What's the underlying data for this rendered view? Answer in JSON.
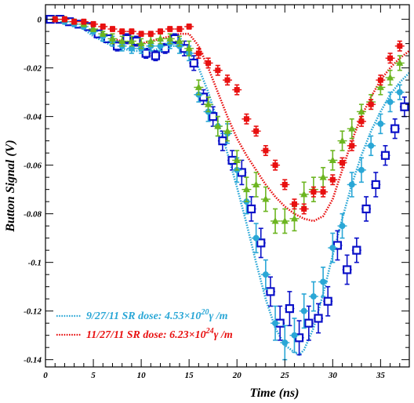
{
  "chart_data": {
    "type": "scatter",
    "xlabel": "Time (ns)",
    "ylabel": "Button Signal (V)",
    "xlim": [
      0,
      38
    ],
    "ylim": [
      -0.143,
      0.006
    ],
    "grid": false,
    "x_ticks": [
      0,
      5,
      10,
      15,
      20,
      25,
      30,
      35
    ],
    "y_ticks": [
      0,
      -0.02,
      -0.04,
      -0.06,
      -0.08,
      -0.1,
      -0.12,
      -0.14
    ],
    "x_tick_labels": [
      "0",
      "5",
      "10",
      "15",
      "20",
      "25",
      "30",
      "35"
    ],
    "y_tick_labels": [
      "0",
      "-0.02",
      "-0.04",
      "-0.06",
      "-0.08",
      "-0.1",
      "-0.12",
      "-0.14"
    ],
    "legend": {
      "placement": "bottom-left",
      "entries": [
        {
          "label": "9/27/11 SR dose: 4.53×10",
          "exp": "20",
          "suffix": "γ /m",
          "color": "#2aa7d6"
        },
        {
          "label": "11/27/11 SR dose: 6.23×10",
          "exp": "24",
          "suffix": "γ /m",
          "color": "#e81010"
        }
      ]
    },
    "series": [
      {
        "name": "9/27/11 SR dose: 4.53×10^20 γ/m",
        "kind": "dotted-line",
        "color": "#2aa7d6",
        "x": [
          0,
          1,
          2,
          3,
          4,
          5,
          6,
          7,
          8,
          9,
          10,
          11,
          12,
          13,
          14,
          15,
          16,
          17,
          18,
          19,
          20,
          21,
          22,
          23,
          24,
          25,
          26,
          26.5,
          27,
          28,
          29,
          30,
          31,
          32,
          33,
          34,
          35,
          36,
          37,
          38
        ],
        "y": [
          0.0,
          0.0,
          -0.001,
          -0.002,
          -0.004,
          -0.007,
          -0.009,
          -0.011,
          -0.012,
          -0.013,
          -0.013,
          -0.013,
          -0.012,
          -0.011,
          -0.011,
          -0.013,
          -0.02,
          -0.03,
          -0.042,
          -0.055,
          -0.069,
          -0.084,
          -0.1,
          -0.115,
          -0.127,
          -0.134,
          -0.137,
          -0.138,
          -0.136,
          -0.127,
          -0.113,
          -0.097,
          -0.082,
          -0.068,
          -0.056,
          -0.046,
          -0.038,
          -0.031,
          -0.026,
          -0.022
        ]
      },
      {
        "name": "11/27/11 SR dose: 6.23×10^24 γ/m",
        "kind": "dotted-line",
        "color": "#e81010",
        "x": [
          0,
          1,
          2,
          3,
          4,
          5,
          6,
          7,
          8,
          9,
          10,
          11,
          12,
          13,
          14,
          15,
          16,
          17,
          18,
          19,
          20,
          21,
          22,
          23,
          24,
          25,
          26,
          27,
          28,
          29,
          30,
          31,
          32,
          33,
          34,
          35,
          36,
          37,
          38
        ],
        "y": [
          0.0,
          0.0,
          0.0,
          -0.001,
          -0.002,
          -0.004,
          -0.006,
          -0.008,
          -0.009,
          -0.01,
          -0.01,
          -0.009,
          -0.008,
          -0.007,
          -0.006,
          -0.006,
          -0.011,
          -0.02,
          -0.03,
          -0.04,
          -0.049,
          -0.056,
          -0.062,
          -0.068,
          -0.073,
          -0.077,
          -0.08,
          -0.082,
          -0.083,
          -0.081,
          -0.074,
          -0.062,
          -0.05,
          -0.04,
          -0.032,
          -0.025,
          -0.02,
          -0.016,
          -0.013
        ]
      },
      {
        "name": "blue open squares",
        "kind": "markers",
        "marker": "open-square",
        "color": "#0a10c8",
        "x": [
          0.5,
          1.5,
          2.5,
          3.5,
          4.5,
          5.5,
          6.5,
          7.5,
          8.5,
          9.5,
          10.5,
          11.5,
          12.5,
          13.5,
          14.5,
          15.5,
          16.5,
          17.5,
          18.5,
          19.5,
          20.5,
          21.5,
          22.5,
          23.5,
          24.5,
          25.5,
          26.5,
          27.5,
          28.5,
          29.5,
          30.5,
          31.5,
          32.5,
          33.5,
          34.5,
          35.5,
          36.5,
          37.5
        ],
        "y": [
          0.0,
          0.0,
          -0.001,
          -0.002,
          -0.003,
          -0.006,
          -0.008,
          -0.011,
          -0.008,
          -0.009,
          -0.014,
          -0.015,
          -0.012,
          -0.008,
          -0.012,
          -0.018,
          -0.032,
          -0.04,
          -0.05,
          -0.058,
          -0.063,
          -0.078,
          -0.092,
          -0.112,
          -0.125,
          -0.119,
          -0.131,
          -0.125,
          -0.123,
          -0.116,
          -0.093,
          -0.103,
          -0.095,
          -0.078,
          -0.068,
          -0.056,
          -0.045,
          -0.036
        ],
        "err": [
          0.001,
          0.001,
          0.001,
          0.001,
          0.001,
          0.001,
          0.001,
          0.002,
          0.002,
          0.002,
          0.002,
          0.002,
          0.002,
          0.002,
          0.003,
          0.003,
          0.003,
          0.004,
          0.004,
          0.004,
          0.005,
          0.005,
          0.006,
          0.006,
          0.007,
          0.007,
          0.007,
          0.007,
          0.006,
          0.006,
          0.006,
          0.006,
          0.005,
          0.005,
          0.005,
          0.004,
          0.004,
          0.004
        ]
      },
      {
        "name": "cyan filled circles",
        "kind": "markers",
        "marker": "filled-circle",
        "color": "#2aa7d6",
        "x": [
          1,
          2,
          3,
          4,
          5,
          6,
          7,
          8,
          9,
          10,
          11,
          12,
          13,
          14,
          15,
          16,
          17,
          18,
          19,
          20,
          21,
          22,
          23,
          24,
          25,
          26,
          27,
          28,
          29,
          30,
          31,
          32,
          33,
          34,
          35,
          36,
          37
        ],
        "y": [
          0.0,
          -0.001,
          -0.002,
          -0.003,
          -0.005,
          -0.007,
          -0.009,
          -0.011,
          -0.012,
          -0.012,
          -0.011,
          -0.011,
          -0.01,
          -0.011,
          -0.014,
          -0.031,
          -0.038,
          -0.044,
          -0.047,
          -0.062,
          -0.075,
          -0.09,
          -0.105,
          -0.125,
          -0.133,
          -0.13,
          -0.12,
          -0.114,
          -0.108,
          -0.094,
          -0.085,
          -0.068,
          -0.062,
          -0.052,
          -0.043,
          -0.034,
          -0.03
        ],
        "err": [
          0.001,
          0.001,
          0.001,
          0.001,
          0.001,
          0.002,
          0.002,
          0.002,
          0.002,
          0.002,
          0.002,
          0.002,
          0.002,
          0.003,
          0.003,
          0.003,
          0.004,
          0.004,
          0.004,
          0.005,
          0.005,
          0.006,
          0.006,
          0.007,
          0.007,
          0.007,
          0.007,
          0.006,
          0.006,
          0.006,
          0.005,
          0.005,
          0.005,
          0.004,
          0.004,
          0.004,
          0.003
        ]
      },
      {
        "name": "green triangles",
        "kind": "markers",
        "marker": "filled-triangle",
        "color": "#6cb520",
        "x": [
          1,
          2,
          3,
          4,
          5,
          6,
          7,
          8,
          9,
          10,
          11,
          12,
          13,
          14,
          15,
          16,
          17,
          18,
          19,
          20,
          21,
          22,
          23,
          24,
          25,
          26,
          27,
          28,
          29,
          30,
          31,
          32,
          33,
          34,
          35,
          36,
          37
        ],
        "y": [
          0.0,
          0.0,
          -0.001,
          -0.002,
          -0.004,
          -0.006,
          -0.008,
          -0.009,
          -0.009,
          -0.01,
          -0.009,
          -0.008,
          -0.008,
          -0.009,
          -0.012,
          -0.028,
          -0.035,
          -0.044,
          -0.046,
          -0.058,
          -0.07,
          -0.068,
          -0.074,
          -0.083,
          -0.083,
          -0.082,
          -0.072,
          -0.07,
          -0.065,
          -0.058,
          -0.05,
          -0.045,
          -0.038,
          -0.034,
          -0.028,
          -0.024,
          -0.018
        ],
        "err": [
          0.001,
          0.001,
          0.001,
          0.001,
          0.001,
          0.001,
          0.002,
          0.002,
          0.002,
          0.002,
          0.002,
          0.002,
          0.002,
          0.002,
          0.003,
          0.003,
          0.003,
          0.004,
          0.004,
          0.004,
          0.005,
          0.005,
          0.005,
          0.005,
          0.005,
          0.005,
          0.005,
          0.005,
          0.004,
          0.004,
          0.004,
          0.004,
          0.003,
          0.003,
          0.003,
          0.003,
          0.003
        ]
      },
      {
        "name": "red filled squares",
        "kind": "markers",
        "marker": "filled-square",
        "color": "#e81010",
        "x": [
          1,
          2,
          3,
          4,
          5,
          6,
          7,
          8,
          9,
          10,
          11,
          12,
          13,
          14,
          15,
          16,
          17,
          18,
          19,
          20,
          21,
          22,
          23,
          24,
          25,
          26,
          27,
          28,
          29,
          30,
          31,
          32,
          33,
          34,
          35,
          36,
          37
        ],
        "y": [
          0.0,
          0.0,
          -0.001,
          -0.001,
          -0.002,
          -0.003,
          -0.004,
          -0.005,
          -0.005,
          -0.006,
          -0.006,
          -0.005,
          -0.004,
          -0.004,
          -0.003,
          -0.014,
          -0.018,
          -0.021,
          -0.025,
          -0.029,
          -0.041,
          -0.046,
          -0.054,
          -0.06,
          -0.068,
          -0.076,
          -0.078,
          -0.071,
          -0.071,
          -0.066,
          -0.059,
          -0.052,
          -0.042,
          -0.035,
          -0.025,
          -0.016,
          -0.011
        ],
        "err": [
          0.001,
          0.001,
          0.001,
          0.001,
          0.001,
          0.001,
          0.001,
          0.001,
          0.001,
          0.001,
          0.001,
          0.001,
          0.001,
          0.001,
          0.001,
          0.002,
          0.002,
          0.002,
          0.002,
          0.002,
          0.002,
          0.002,
          0.002,
          0.002,
          0.002,
          0.002,
          0.002,
          0.002,
          0.002,
          0.002,
          0.002,
          0.002,
          0.002,
          0.002,
          0.002,
          0.002,
          0.002
        ]
      }
    ]
  }
}
